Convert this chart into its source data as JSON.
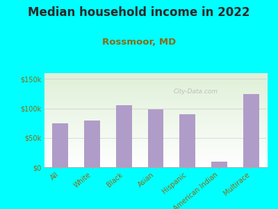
{
  "title": "Median household income in 2022",
  "subtitle": "Rossmoor, MD",
  "categories": [
    "All",
    "White",
    "Black",
    "Asian",
    "Hispanic",
    "American Indian",
    "Multirace"
  ],
  "values": [
    75000,
    80000,
    105000,
    98000,
    90000,
    10000,
    125000
  ],
  "bar_color": "#b09cc8",
  "title_color": "#2a2a2a",
  "subtitle_color": "#8B6914",
  "background_outer": "#00ffff",
  "background_inner_top": "#dff0d8",
  "background_inner_bottom": "#ffffff",
  "axis_label_color": "#8B6914",
  "tick_color": "#8B6914",
  "ylim": [
    0,
    160000
  ],
  "yticks": [
    0,
    50000,
    100000,
    150000
  ],
  "ytick_labels": [
    "$0",
    "$50k",
    "$100k",
    "$150k"
  ],
  "watermark": "City-Data.com",
  "title_fontsize": 12,
  "subtitle_fontsize": 9.5,
  "tick_fontsize": 7
}
